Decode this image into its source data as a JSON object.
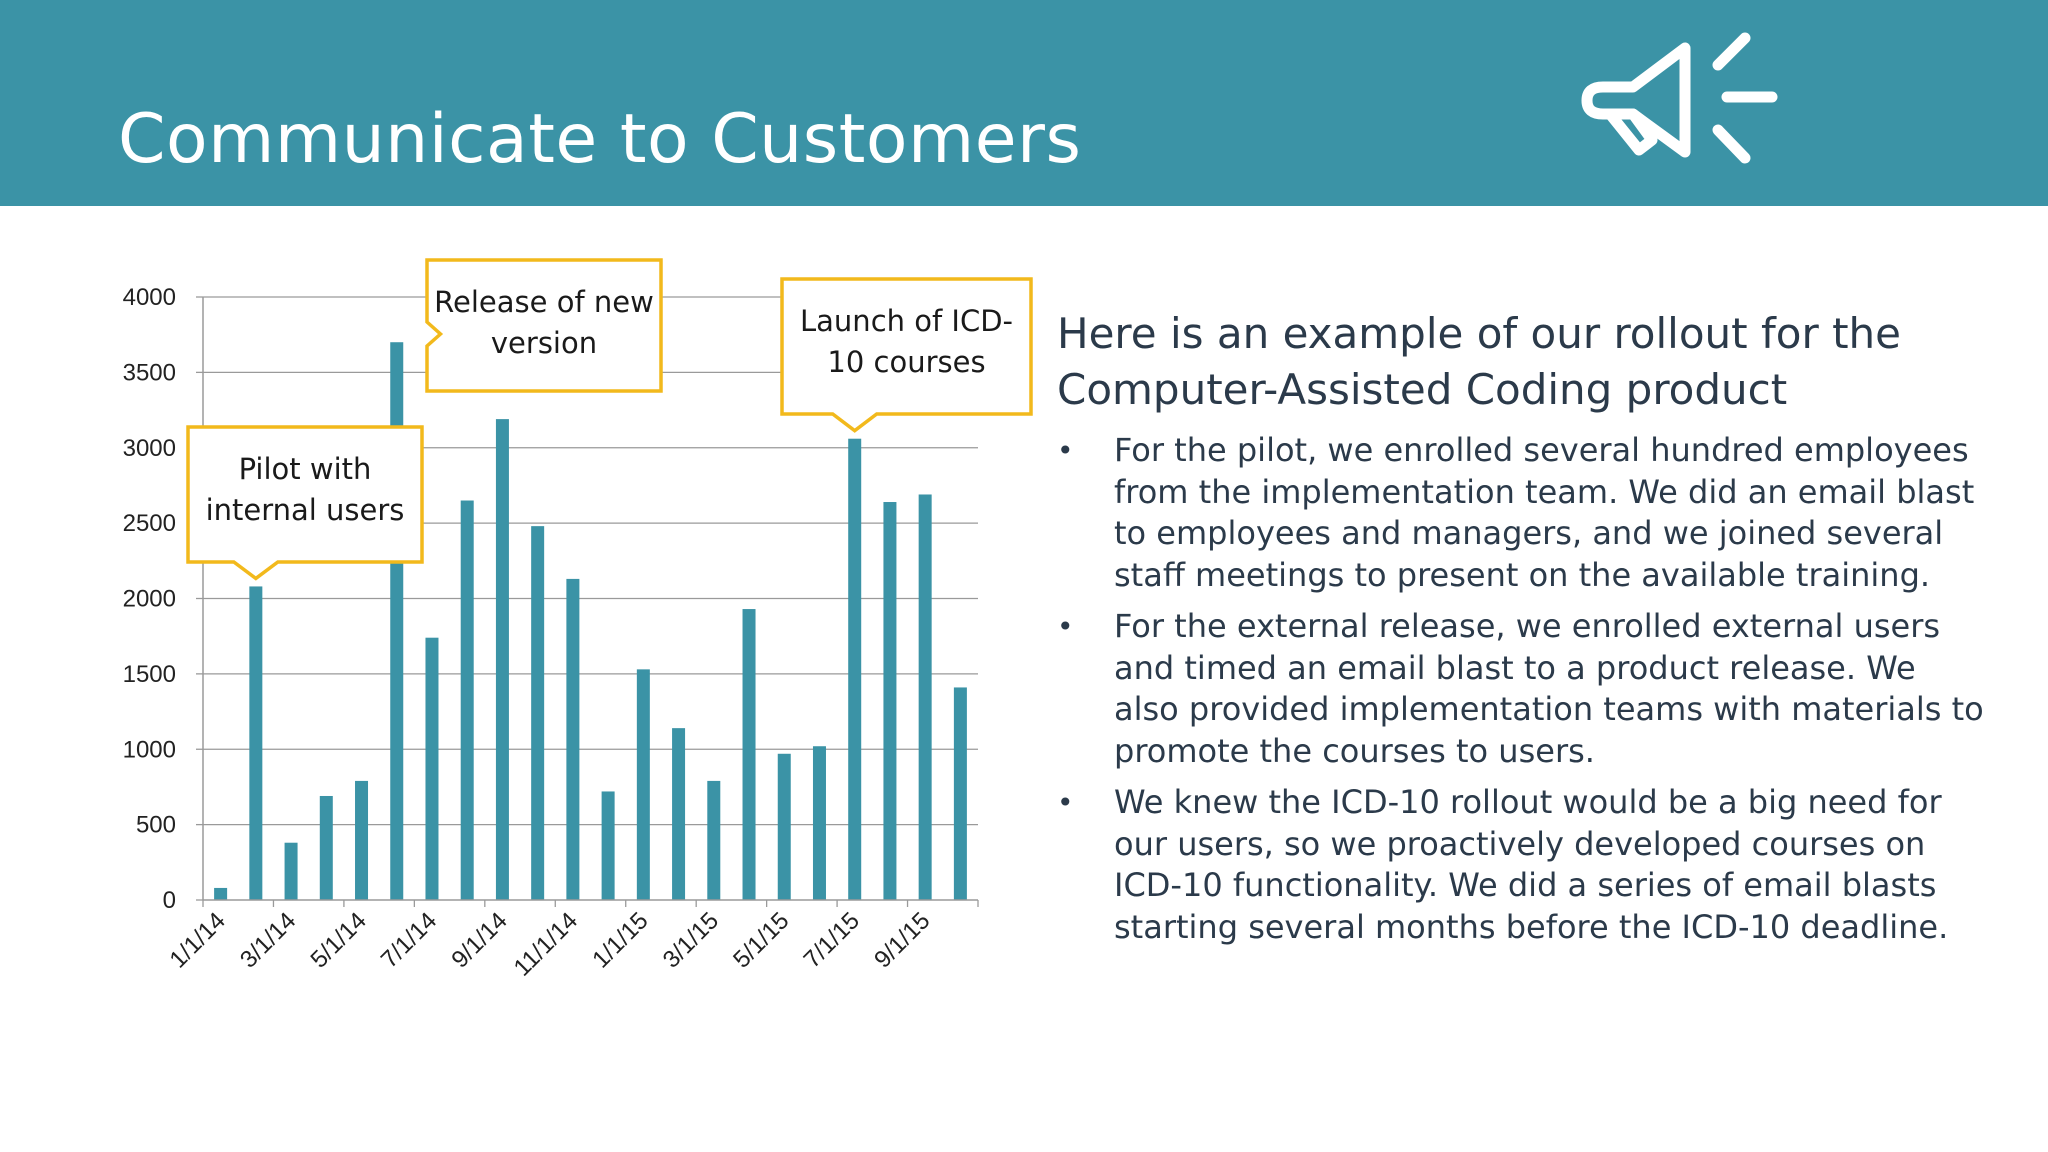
{
  "header": {
    "title": "Communicate to Customers",
    "icon": "megaphone-icon",
    "background_color": "#3b93a6"
  },
  "chart_data": {
    "type": "bar",
    "title": "",
    "xlabel": "",
    "ylabel": "",
    "ylim": [
      0,
      4000
    ],
    "yticks": [
      0,
      500,
      1000,
      1500,
      2000,
      2500,
      3000,
      3500,
      4000
    ],
    "grid": true,
    "bar_color": "#3b93a6",
    "categories": [
      "1/1/14",
      "2/1/14",
      "3/1/14",
      "4/1/14",
      "5/1/14",
      "6/1/14",
      "7/1/14",
      "8/1/14",
      "9/1/14",
      "10/1/14",
      "11/1/14",
      "12/1/14",
      "1/1/15",
      "2/1/15",
      "3/1/15",
      "4/1/15",
      "5/1/15",
      "6/1/15",
      "7/1/15",
      "8/1/15",
      "9/1/15",
      "10/1/15"
    ],
    "tick_labels": [
      "1/1/14",
      "3/1/14",
      "5/1/14",
      "7/1/14",
      "9/1/14",
      "11/1/14",
      "1/1/15",
      "3/1/15",
      "5/1/15",
      "7/1/15",
      "9/1/15"
    ],
    "values": [
      80,
      2080,
      380,
      690,
      790,
      3700,
      1740,
      2650,
      3190,
      2480,
      2130,
      720,
      1530,
      1140,
      790,
      1930,
      970,
      1020,
      3060,
      2640,
      2690,
      1410
    ],
    "annotations": [
      {
        "text_lines": [
          "Pilot with",
          "internal users"
        ],
        "target_index": 1
      },
      {
        "text_lines": [
          "Release of new",
          "version"
        ],
        "target_index": 6
      },
      {
        "text_lines": [
          "Launch of ICD-",
          "10 courses"
        ],
        "target_index": 18
      }
    ],
    "callout_border_color": "#f2b91c"
  },
  "content": {
    "heading": "Here is an example of our rollout for the Computer-Assisted Coding product",
    "bullet_symbol": "•",
    "bullets": [
      "For the pilot, we enrolled several hundred employees from the implementation team. We did an email blast to employees and managers, and we joined several staff meetings to present on the available training.",
      "For the external release, we enrolled external users and timed an email blast to a product release. We also provided implementation teams with materials to promote the courses to users.",
      "We knew the ICD-10 rollout would be a big need for our users, so we proactively developed courses on ICD-10 functionality. We did a series of email blasts starting several months before the ICD-10 deadline."
    ]
  }
}
